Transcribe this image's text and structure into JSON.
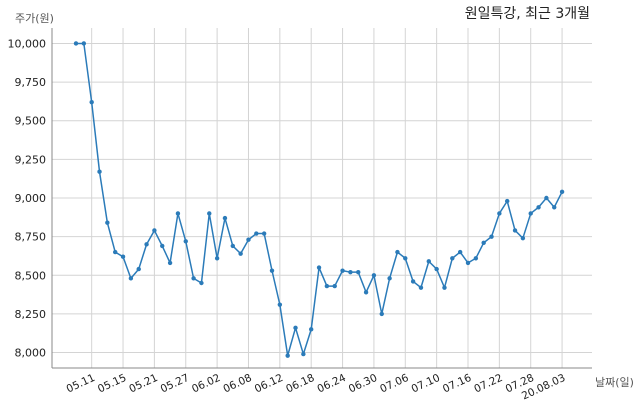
{
  "chart_data": {
    "type": "line",
    "title": "원일특강, 최근 3개월",
    "ylabel": "주가(원)",
    "xlabel": "날짜(일)",
    "ylim": [
      7900,
      10100
    ],
    "yticks": [
      8000,
      8250,
      8500,
      8750,
      9000,
      9250,
      9500,
      9750,
      10000
    ],
    "ytick_labels": [
      "8,000",
      "8,250",
      "8,500",
      "8,750",
      "9,000",
      "9,250",
      "9,500",
      "9,750",
      "10,000"
    ],
    "xtick_labels": [
      "05.11",
      "05.15",
      "05.21",
      "05.27",
      "06.02",
      "06.08",
      "06.12",
      "06.18",
      "06.24",
      "06.30",
      "07.06",
      "07.10",
      "07.16",
      "07.22",
      "07.28",
      "20.08.03"
    ],
    "xtick_index": [
      2,
      6,
      10,
      14,
      18,
      22,
      26,
      30,
      34,
      38,
      42,
      46,
      50,
      54,
      58,
      62
    ],
    "grid": true,
    "color": "#2b7bb9",
    "series": [
      {
        "values": [
          10000,
          10000,
          9620,
          9170,
          8840,
          8650,
          8620,
          8480,
          8540,
          8700,
          8790,
          8690,
          8580,
          8900,
          8720,
          8480,
          8450,
          8900,
          8610,
          8870,
          8690,
          8640,
          8730,
          8770,
          8770,
          8530,
          8310,
          7980,
          8160,
          7990,
          8150,
          8550,
          8430,
          8430,
          8530,
          8520,
          8520,
          8390,
          8500,
          8250,
          8480,
          8650,
          8610,
          8460,
          8420,
          8590,
          8540,
          8420,
          8610,
          8650,
          8580,
          8610,
          8710,
          8750,
          8900,
          8980,
          8790,
          8740,
          8900,
          8940,
          9000,
          8940,
          9040
        ]
      }
    ]
  }
}
